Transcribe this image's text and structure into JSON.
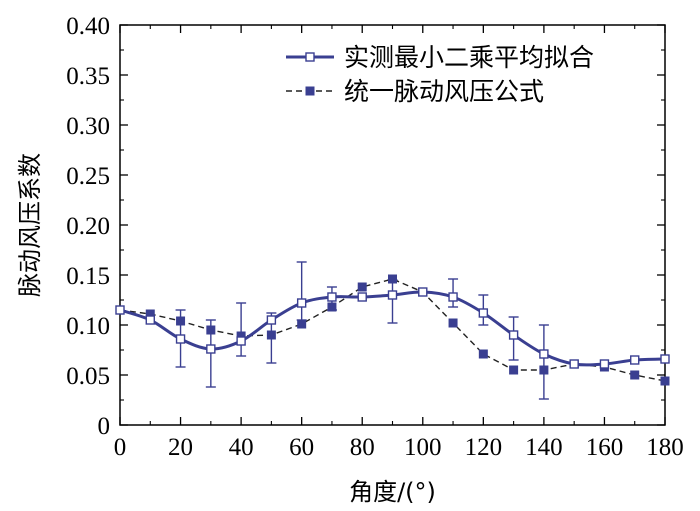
{
  "chart_data": {
    "type": "line",
    "xlabel": "角度/(°)",
    "ylabel": "脉动风压系数",
    "xlim": [
      0,
      180
    ],
    "ylim": [
      0,
      0.4
    ],
    "x_ticks": [
      "0",
      "20",
      "40",
      "60",
      "80",
      "100",
      "120",
      "140",
      "160",
      "180"
    ],
    "y_ticks": [
      "0",
      "0.05",
      "0.10",
      "0.15",
      "0.20",
      "0.25",
      "0.30",
      "0.35",
      "0.40"
    ],
    "x_tick_values": [
      0,
      20,
      40,
      60,
      80,
      100,
      120,
      140,
      160,
      180
    ],
    "y_tick_values": [
      0,
      0.05,
      0.1,
      0.15,
      0.2,
      0.25,
      0.3,
      0.35,
      0.4
    ],
    "legend_position": "top-right",
    "series": [
      {
        "name": "实测最小二乘平均拟合",
        "marker": "open-square",
        "line_style": "solid-smooth",
        "color": "#3a3f91",
        "x": [
          0,
          10,
          20,
          30,
          40,
          50,
          60,
          70,
          80,
          90,
          100,
          110,
          120,
          130,
          140,
          150,
          160,
          170,
          180
        ],
        "y": [
          0.115,
          0.105,
          0.086,
          0.076,
          0.084,
          0.105,
          0.122,
          0.128,
          0.128,
          0.13,
          0.133,
          0.128,
          0.112,
          0.09,
          0.071,
          0.061,
          0.061,
          0.065,
          0.066
        ],
        "error_low": [
          null,
          null,
          0.058,
          0.038,
          0.069,
          0.062,
          0.105,
          0.115,
          null,
          0.102,
          null,
          0.118,
          0.1,
          0.065,
          0.026,
          null,
          null,
          null,
          null
        ],
        "error_high": [
          null,
          null,
          0.115,
          0.105,
          0.122,
          0.112,
          0.163,
          0.138,
          null,
          0.145,
          null,
          0.146,
          0.13,
          0.108,
          0.1,
          null,
          null,
          null,
          null
        ]
      },
      {
        "name": "统一脉动风压公式",
        "marker": "filled-square",
        "line_style": "dashed",
        "color": "#3a3f91",
        "x": [
          0,
          10,
          20,
          30,
          40,
          50,
          60,
          70,
          80,
          90,
          100,
          110,
          120,
          130,
          140,
          150,
          160,
          170,
          180
        ],
        "y": [
          0.115,
          0.111,
          0.104,
          0.095,
          0.089,
          0.09,
          0.101,
          0.118,
          0.138,
          0.146,
          0.133,
          0.102,
          0.071,
          0.055,
          0.055,
          0.061,
          0.058,
          0.05,
          0.044
        ]
      }
    ]
  }
}
